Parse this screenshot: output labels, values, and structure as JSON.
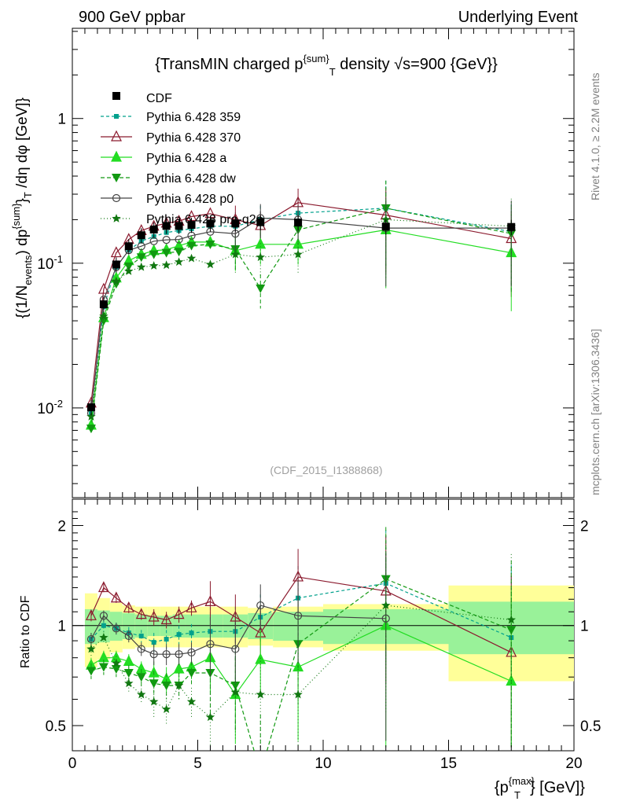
{
  "header": {
    "left": "900 GeV ppbar",
    "right": "Underlying Event",
    "side_top": "Rivet 4.1.0, ≥ 2.2M events",
    "side_bottom": "mcplots.cern.ch [arXiv:1306.3436]",
    "watermark": "(CDF_2015_I1388868)"
  },
  "chart_data": [
    {
      "type": "line",
      "panel": "main",
      "title": "{TransMIN charged p^{sum}_T density √s=900 {GeV}}",
      "title_parts": {
        "a": "{TransMIN charged p",
        "sup": "{sum}",
        "sub": "T",
        "b": " density ",
        "root": "√",
        "c": "s=900 {GeV}}"
      },
      "ylabel_parts": {
        "a": "{(1/N",
        "sub1": "events",
        "b": ") dp",
        "sup2": "{sum}",
        "c": "}",
        "sub2": "T",
        "d": " /dη  dφ [GeV]}"
      },
      "yscale": "log",
      "ylim": [
        0.0024,
        4.2
      ],
      "yticks": [
        {
          "v": 0.01,
          "label": "10",
          "exp": "-2"
        },
        {
          "v": 0.1,
          "label": "10",
          "exp": "-1"
        },
        {
          "v": 1,
          "label": "1",
          "exp": ""
        }
      ],
      "x": [
        0.75,
        1.25,
        1.75,
        2.25,
        2.75,
        3.25,
        3.75,
        4.25,
        4.75,
        5.5,
        6.5,
        7.5,
        9.0,
        12.5,
        17.5
      ],
      "data_series": {
        "name": "CDF",
        "values": [
          0.0101,
          0.052,
          0.098,
          0.131,
          0.156,
          0.171,
          0.181,
          0.181,
          0.184,
          0.188,
          0.188,
          0.192,
          0.191,
          0.179,
          0.178
        ]
      },
      "series": [
        {
          "name": "Pythia 6.428 359",
          "color": "#00a08c",
          "dash": "4,3",
          "marker": "square-small",
          "values": [
            0.0092,
            0.05,
            0.094,
            0.123,
            0.142,
            0.153,
            0.163,
            0.168,
            0.173,
            0.18,
            0.18,
            0.2,
            0.222,
            0.24,
            0.165
          ]
        },
        {
          "name": "Pythia 6.428 370",
          "color": "#8b1a2e",
          "dash": "",
          "marker": "triangle-open",
          "values": [
            0.0108,
            0.066,
            0.118,
            0.146,
            0.168,
            0.18,
            0.189,
            0.195,
            0.21,
            0.22,
            0.2,
            0.182,
            0.262,
            0.215,
            0.148
          ]
        },
        {
          "name": "Pythia 6.428 a",
          "color": "#22dd22",
          "dash": "",
          "marker": "triangle",
          "values": [
            0.0076,
            0.042,
            0.079,
            0.104,
            0.115,
            0.122,
            0.124,
            0.132,
            0.14,
            0.14,
            0.122,
            0.135,
            0.135,
            0.17,
            0.118
          ]
        },
        {
          "name": "Pythia 6.428 dw",
          "color": "#119911",
          "dash": "5,3",
          "marker": "triangle-down",
          "values": [
            0.0072,
            0.04,
            0.072,
            0.095,
            0.11,
            0.115,
            0.118,
            0.12,
            0.132,
            0.135,
            0.125,
            0.067,
            0.17,
            0.24,
            0.16
          ]
        },
        {
          "name": "Pythia 6.428 p0",
          "color": "#444444",
          "dash": "",
          "marker": "circle-open",
          "values": [
            0.0092,
            0.056,
            0.094,
            0.123,
            0.131,
            0.142,
            0.145,
            0.146,
            0.155,
            0.165,
            0.16,
            0.205,
            0.2,
            0.175,
            0.175
          ]
        },
        {
          "name": "Pythia 6.428 pro-q2o",
          "color": "#117711",
          "dash": "1,3",
          "marker": "star",
          "values": [
            0.0087,
            0.043,
            0.075,
            0.088,
            0.094,
            0.096,
            0.097,
            0.102,
            0.108,
            0.098,
            0.115,
            0.11,
            0.115,
            0.2,
            0.18
          ]
        }
      ]
    },
    {
      "type": "line",
      "panel": "ratio",
      "ylabel": "Ratio to CDF",
      "yscale": "log",
      "ylim": [
        0.42,
        2.4
      ],
      "yticks": [
        0.5,
        1,
        2
      ],
      "xlabel_parts": {
        "a": "{p",
        "sup": "{max}",
        "sub": "T",
        "b": "} [GeV]}"
      },
      "xlim": [
        0,
        20
      ],
      "xticks": [
        0,
        5,
        10,
        15,
        20
      ],
      "x": [
        0.75,
        1.25,
        1.75,
        2.25,
        2.75,
        3.25,
        3.75,
        4.25,
        4.75,
        5.5,
        6.5,
        7.5,
        9.0,
        12.5,
        17.5
      ],
      "bins": [
        [
          0.5,
          1
        ],
        [
          1,
          1.5
        ],
        [
          1.5,
          2
        ],
        [
          2,
          2.5
        ],
        [
          2.5,
          3
        ],
        [
          3,
          3.5
        ],
        [
          3.5,
          4
        ],
        [
          4,
          4.5
        ],
        [
          4.5,
          5
        ],
        [
          5,
          6
        ],
        [
          6,
          7
        ],
        [
          7,
          8
        ],
        [
          8,
          10
        ],
        [
          10,
          15
        ],
        [
          15,
          20
        ]
      ],
      "band_stat": [
        0.12,
        0.11,
        0.1,
        0.09,
        0.08,
        0.07,
        0.07,
        0.08,
        0.08,
        0.08,
        0.08,
        0.09,
        0.1,
        0.12,
        0.18
      ],
      "band_total": [
        0.25,
        0.21,
        0.17,
        0.15,
        0.14,
        0.14,
        0.14,
        0.14,
        0.14,
        0.14,
        0.14,
        0.13,
        0.14,
        0.16,
        0.32
      ],
      "series": [
        {
          "name": "Pythia 6.428 359",
          "values": [
            0.91,
            1.0,
            0.98,
            0.95,
            0.93,
            0.89,
            0.91,
            0.94,
            0.95,
            0.96,
            0.96,
            1.06,
            1.21,
            1.34,
            0.92
          ]
        },
        {
          "name": "Pythia 6.428 370",
          "values": [
            1.07,
            1.3,
            1.21,
            1.13,
            1.08,
            1.06,
            1.04,
            1.08,
            1.13,
            1.18,
            1.06,
            0.95,
            1.4,
            1.27,
            0.83
          ]
        },
        {
          "name": "Pythia 6.428 a",
          "values": [
            0.76,
            0.8,
            0.8,
            0.78,
            0.74,
            0.72,
            0.69,
            0.74,
            0.75,
            0.8,
            0.62,
            0.79,
            0.75,
            1.0,
            0.68
          ]
        },
        {
          "name": "Pythia 6.428 dw",
          "values": [
            0.73,
            0.75,
            0.74,
            0.72,
            0.7,
            0.67,
            0.66,
            0.66,
            0.72,
            0.72,
            0.66,
            0.36,
            0.88,
            1.38,
            0.97
          ]
        },
        {
          "name": "Pythia 6.428 p0",
          "values": [
            0.91,
            1.07,
            0.98,
            0.93,
            0.85,
            0.82,
            0.82,
            0.82,
            0.83,
            0.88,
            0.85,
            1.15,
            1.07,
            1.05,
            null
          ]
        },
        {
          "name": "Pythia 6.428 pro-q2o",
          "values": [
            0.85,
            0.92,
            0.77,
            0.67,
            0.62,
            0.59,
            0.56,
            0.66,
            0.59,
            0.53,
            0.63,
            0.62,
            0.62,
            1.15,
            1.04
          ]
        }
      ]
    }
  ]
}
